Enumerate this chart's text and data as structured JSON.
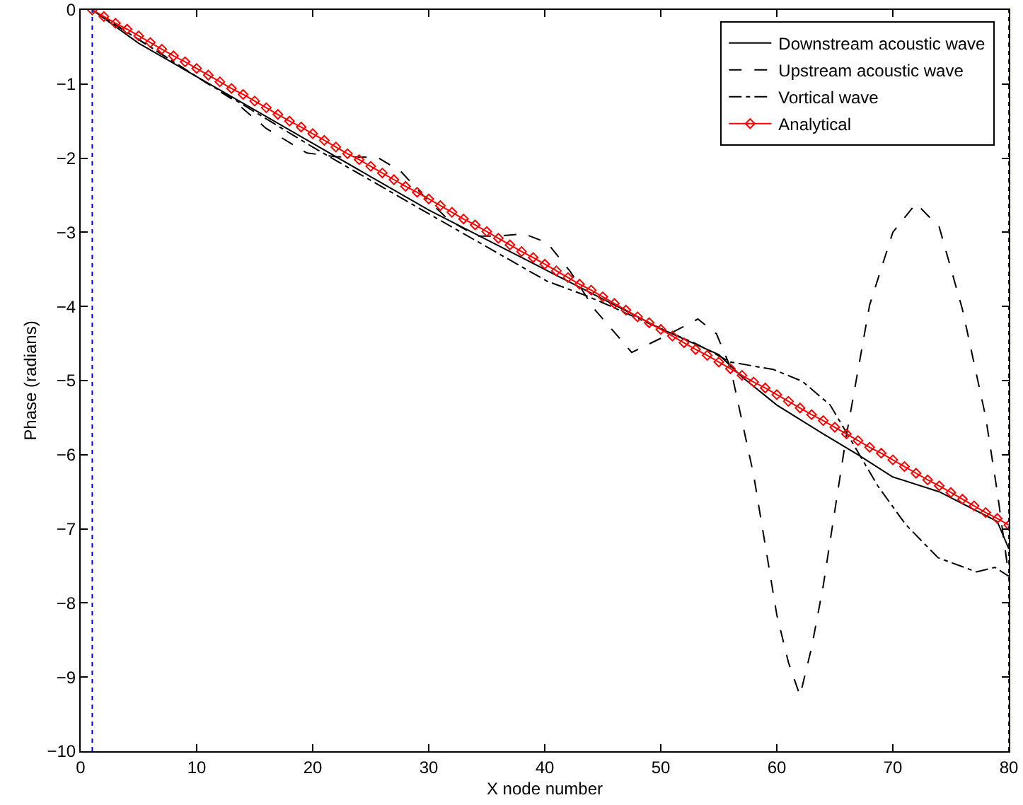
{
  "chart_data": {
    "type": "line",
    "xlabel": "X node number",
    "ylabel": "Phase (radians)",
    "xlim": [
      0,
      80
    ],
    "xticks": [
      0,
      10,
      20,
      30,
      40,
      50,
      60,
      70,
      80
    ],
    "ylim": [
      -10,
      0
    ],
    "yticks": [
      -10,
      -9,
      -8,
      -7,
      -6,
      -5,
      -4,
      -3,
      -2,
      -1,
      0
    ],
    "grid": false,
    "legend": "top right",
    "ref_lines": [
      {
        "axis": "x",
        "value": 1,
        "color": "#0000ff",
        "line_style": "dotted"
      },
      {
        "axis": "x",
        "value": 80,
        "color": "#0000ff",
        "line_style": "dotted"
      }
    ],
    "series": [
      {
        "name": "Downstream acoustic wave",
        "color": "#000000",
        "line_style": "solid",
        "marker": "none",
        "x": [
          1,
          5,
          10,
          15,
          20,
          25,
          30,
          35,
          40,
          45,
          50,
          55,
          57,
          60,
          64,
          67,
          70,
          74,
          78,
          79,
          80
        ],
        "values": [
          0,
          -0.45,
          -0.9,
          -1.35,
          -1.8,
          -2.25,
          -2.7,
          -3.1,
          -3.5,
          -3.9,
          -4.3,
          -4.65,
          -4.95,
          -5.33,
          -5.72,
          -6.0,
          -6.3,
          -6.5,
          -6.82,
          -6.9,
          -7.27
        ]
      },
      {
        "name": "Upstream acoustic wave",
        "color": "#000000",
        "line_style": "dashed",
        "marker": "none",
        "x": [
          1,
          5,
          10,
          13,
          16,
          19.5,
          22,
          25.6,
          27.6,
          29.5,
          31.7,
          34.1,
          36,
          38.2,
          40.2,
          42.2,
          44.3,
          47.5,
          50,
          53.2,
          54.8,
          56,
          58,
          60,
          61,
          62,
          63,
          64,
          66,
          68,
          70,
          72,
          74,
          76,
          78,
          79,
          80
        ],
        "values": [
          0,
          -0.4,
          -0.9,
          -1.2,
          -1.6,
          -1.93,
          -1.98,
          -1.99,
          -2.18,
          -2.5,
          -2.83,
          -3.05,
          -3.05,
          -3.02,
          -3.14,
          -3.53,
          -4.04,
          -4.62,
          -4.43,
          -4.17,
          -4.37,
          -4.82,
          -6.27,
          -8.16,
          -8.8,
          -9.25,
          -8.6,
          -7.77,
          -5.74,
          -3.98,
          -3.0,
          -2.61,
          -2.93,
          -4.04,
          -5.49,
          -6.5,
          -7.64
        ]
      },
      {
        "name": "Vortical wave",
        "color": "#000000",
        "line_style": "dashdot",
        "marker": "none",
        "x": [
          1,
          10,
          20,
          30,
          40.2,
          43.5,
          45,
          50,
          53,
          56,
          59.7,
          62.2,
          64.6,
          66.3,
          68.7,
          71.1,
          73.9,
          77.2,
          78.8,
          80
        ],
        "values": [
          0,
          -0.9,
          -1.85,
          -2.75,
          -3.66,
          -3.85,
          -3.95,
          -4.3,
          -4.5,
          -4.75,
          -4.85,
          -5.01,
          -5.33,
          -5.78,
          -6.42,
          -6.94,
          -7.39,
          -7.58,
          -7.52,
          -7.64
        ]
      },
      {
        "name": "Analytical",
        "color": "#ff0000",
        "line_style": "solid",
        "marker": "diamond",
        "x": [
          1,
          2,
          3,
          4,
          5,
          6,
          7,
          8,
          9,
          10,
          11,
          12,
          13,
          14,
          15,
          16,
          17,
          18,
          19,
          20,
          21,
          22,
          23,
          24,
          25,
          26,
          27,
          28,
          29,
          30,
          31,
          32,
          33,
          34,
          35,
          36,
          37,
          38,
          39,
          40,
          41,
          42,
          43,
          44,
          45,
          46,
          47,
          48,
          49,
          50,
          51,
          52,
          53,
          54,
          55,
          56,
          57,
          58,
          59,
          60,
          61,
          62,
          63,
          64,
          65,
          66,
          67,
          68,
          69,
          70,
          71,
          72,
          73,
          74,
          75,
          76,
          77,
          78,
          79,
          80
        ],
        "values": [
          0,
          -0.09,
          -0.18,
          -0.26,
          -0.35,
          -0.44,
          -0.53,
          -0.62,
          -0.7,
          -0.79,
          -0.88,
          -0.97,
          -1.06,
          -1.14,
          -1.23,
          -1.32,
          -1.41,
          -1.5,
          -1.58,
          -1.67,
          -1.76,
          -1.85,
          -1.94,
          -2.02,
          -2.11,
          -2.2,
          -2.29,
          -2.38,
          -2.46,
          -2.55,
          -2.64,
          -2.73,
          -2.82,
          -2.9,
          -2.99,
          -3.08,
          -3.17,
          -3.26,
          -3.34,
          -3.43,
          -3.52,
          -3.61,
          -3.7,
          -3.78,
          -3.87,
          -3.96,
          -4.05,
          -4.14,
          -4.22,
          -4.31,
          -4.4,
          -4.49,
          -4.58,
          -4.66,
          -4.75,
          -4.84,
          -4.93,
          -5.02,
          -5.1,
          -5.19,
          -5.28,
          -5.37,
          -5.46,
          -5.54,
          -5.63,
          -5.72,
          -5.81,
          -5.9,
          -5.98,
          -6.07,
          -6.16,
          -6.25,
          -6.34,
          -6.42,
          -6.51,
          -6.6,
          -6.69,
          -6.78,
          -6.86,
          -6.95
        ]
      }
    ]
  }
}
